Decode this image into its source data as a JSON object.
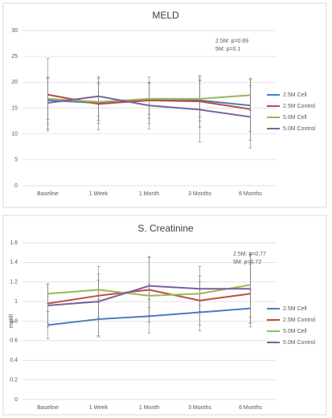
{
  "chart_data": [
    {
      "type": "line",
      "title": "MELD",
      "categories": [
        "Baseline",
        "1 Week",
        "1 Month",
        "3 Months",
        "6 Months"
      ],
      "ylim": [
        0,
        30
      ],
      "yticks": [
        0,
        5,
        10,
        15,
        20,
        25,
        30
      ],
      "annotations": [
        "2.5M: p=0.69",
        "5M: p=0.1"
      ],
      "series": [
        {
          "name": "2.5M Cell",
          "color": "#4a7ebb",
          "values": [
            16.5,
            16,
            16.5,
            16.5,
            15.5
          ],
          "errors": [
            4.5,
            4,
            3.5,
            4,
            5
          ]
        },
        {
          "name": "2.5M Control",
          "color": "#be4b48",
          "values": [
            17.6,
            15.8,
            16.5,
            16.3,
            14.8
          ],
          "errors": [
            7,
            5,
            4.5,
            5,
            6
          ]
        },
        {
          "name": "5.0M Cell",
          "color": "#98b954",
          "values": [
            16.8,
            16.2,
            16.8,
            16.8,
            17.5
          ],
          "errors": [
            4,
            3.5,
            3,
            3.5,
            3
          ]
        },
        {
          "name": "5.0M Control",
          "color": "#7d5fa0",
          "values": [
            16,
            17.3,
            15.5,
            14.7,
            13.3
          ],
          "errors": [
            5,
            3.8,
            4.5,
            6.3,
            6
          ]
        }
      ]
    },
    {
      "type": "line",
      "title": "S. Creatinine",
      "ylabel": "mg/dl",
      "categories": [
        "Baseline",
        "1 Week",
        "1 Month",
        "3 Months",
        "6 Months"
      ],
      "ylim": [
        0,
        1.6
      ],
      "yticks": [
        0,
        0.2,
        0.4,
        0.6,
        0.8,
        1,
        1.2,
        1.4,
        1.6
      ],
      "annotations": [
        "2.5M: p=0.77",
        "5M: p=0.72"
      ],
      "series": [
        {
          "name": "2.5M Cell",
          "color": "#4a7ebb",
          "values": [
            0.76,
            0.82,
            0.85,
            0.89,
            0.93
          ],
          "errors": [
            0.14,
            0.17,
            0.17,
            0.19,
            0.19
          ]
        },
        {
          "name": "2.5M Control",
          "color": "#be4b48",
          "values": [
            0.98,
            1.06,
            1.12,
            1.01,
            1.08
          ],
          "errors": [
            0.2,
            0.22,
            0.33,
            0.25,
            0.3
          ]
        },
        {
          "name": "5.0M Cell",
          "color": "#98b954",
          "values": [
            1.08,
            1.12,
            1.06,
            1.08,
            1.17
          ],
          "errors": [
            0.1,
            0.1,
            0.12,
            0.12,
            0.33
          ]
        },
        {
          "name": "5.0M Control",
          "color": "#7d5fa0",
          "values": [
            0.96,
            1.0,
            1.16,
            1.13,
            1.13
          ],
          "errors": [
            0.22,
            0.36,
            0.3,
            0.23,
            0.35
          ]
        }
      ]
    }
  ]
}
